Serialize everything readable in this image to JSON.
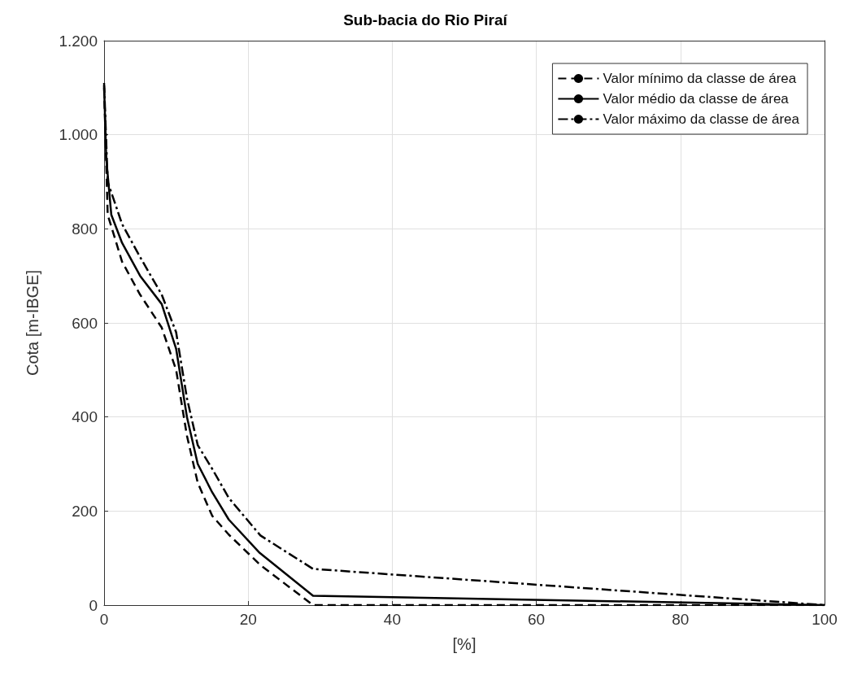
{
  "chart_data": {
    "type": "line",
    "title": "Sub-bacia do Rio Piraí",
    "xlabel": "[%]",
    "ylabel": "Cota [m-IBGE]",
    "xlim": [
      0,
      100
    ],
    "xticks": [
      0,
      20,
      40,
      60,
      80,
      100
    ],
    "ylim": [
      0,
      1200
    ],
    "yticks": [
      0,
      200,
      400,
      600,
      800,
      {
        "value": 1000,
        "label": "1.000"
      },
      {
        "value": 1200,
        "label": "1.200"
      }
    ],
    "grid": true,
    "legend": "top right",
    "marker": "none",
    "series": [
      {
        "name": "Valor mínimo da classe de área",
        "color": "#000000",
        "line_style": "dashed",
        "x": [
          0,
          0.5,
          2.5,
          5,
          8,
          10,
          11.5,
          13,
          15,
          17.3,
          21.7,
          29,
          100
        ],
        "values": [
          1100,
          830,
          730,
          660,
          590,
          500,
          360,
          260,
          190,
          150,
          85,
          0,
          0
        ]
      },
      {
        "name": "Valor médio da classe de área",
        "color": "#000000",
        "line_style": "solid",
        "x": [
          0,
          0.3,
          1,
          2.5,
          5,
          8,
          10,
          11.5,
          13,
          15,
          17.3,
          21.6,
          29,
          100
        ],
        "values": [
          1105,
          950,
          830,
          770,
          700,
          640,
          545,
          400,
          300,
          240,
          182,
          111,
          20,
          0
        ]
      },
      {
        "name": "Valor máximo da classe de área",
        "color": "#000000",
        "line_style": "dashdot",
        "x": [
          0,
          0.5,
          2.5,
          5,
          8,
          10,
          11.5,
          13,
          15,
          17.3,
          21.7,
          29,
          100
        ],
        "values": [
          1110,
          900,
          810,
          740,
          660,
          580,
          440,
          340,
          290,
          228,
          148,
          77,
          0
        ]
      }
    ]
  }
}
